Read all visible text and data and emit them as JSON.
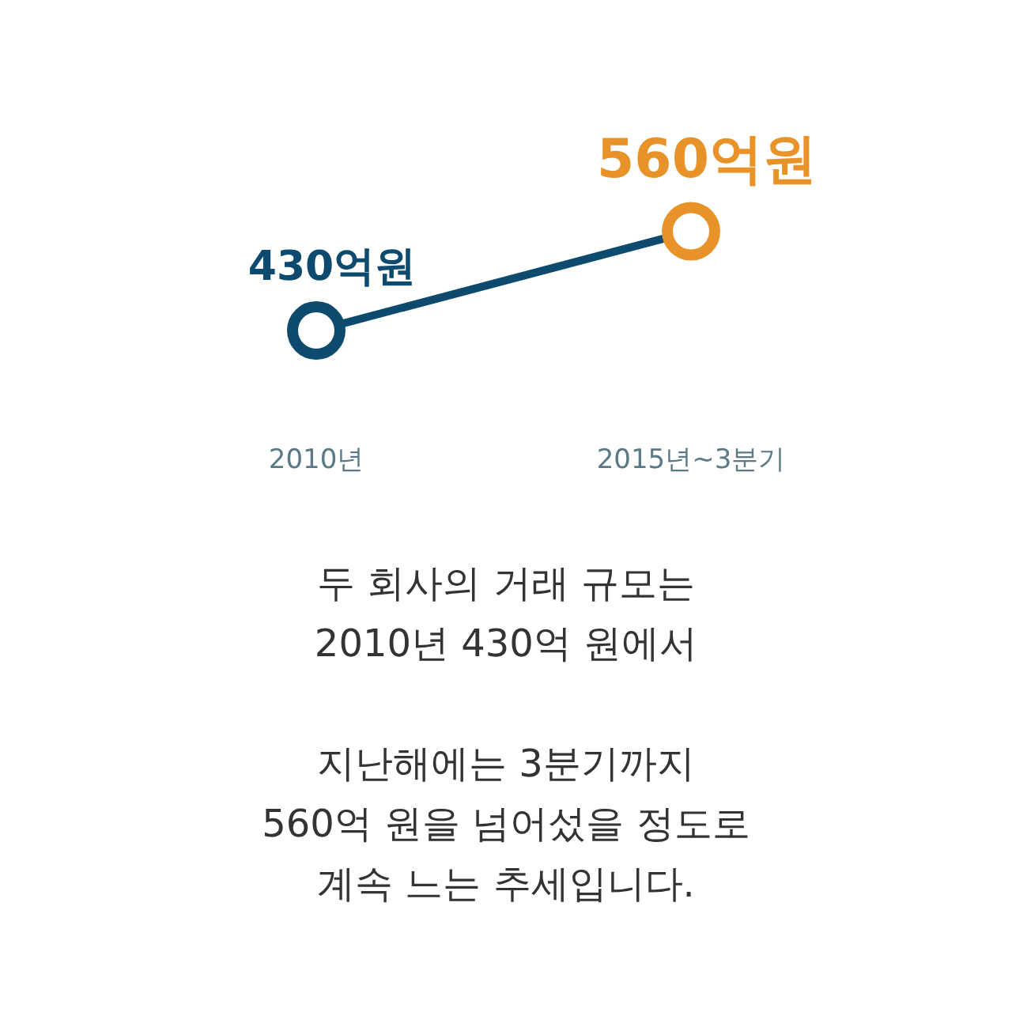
{
  "chart_data": {
    "type": "line",
    "categories": [
      "2010년",
      "2015년~3분기"
    ],
    "series": [
      {
        "color": "#0d4a6e",
        "colors": [
          "#0d4a6e",
          "#e8922a"
        ],
        "values": [
          430,
          560
        ],
        "value_labels": [
          "430억원",
          "560억원"
        ]
      }
    ],
    "marker": "circle",
    "annotations": [
      "두 회사의 거래 규모는\n2010년 430억 원에서",
      "지난해에는 3분기까지\n560억 원을 넘어섰을 정도로\n계속 느는 추세입니다."
    ]
  }
}
